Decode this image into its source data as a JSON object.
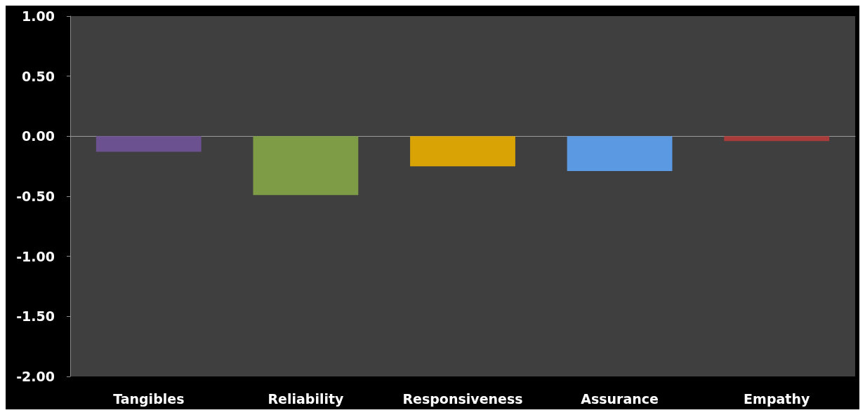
{
  "chart_data": {
    "type": "bar",
    "categories": [
      "Tangibles",
      "Reliability",
      "Responsiveness",
      "Assurance",
      "Empathy"
    ],
    "values": [
      -0.13,
      -0.49,
      -0.25,
      -0.29,
      -0.04
    ],
    "colors": [
      "#6b5190",
      "#7e9b45",
      "#d9a306",
      "#5b9ae3",
      "#a83c3a"
    ],
    "ylim": [
      -2,
      1
    ],
    "yticks": [
      {
        "value": -2,
        "label": "-2.00"
      },
      {
        "value": -1.5,
        "label": "-1.50"
      },
      {
        "value": -1,
        "label": "-1.00"
      },
      {
        "value": -0.5,
        "label": "-0.50"
      },
      {
        "value": 0,
        "label": "0.00"
      },
      {
        "value": 0.5,
        "label": "0.50"
      },
      {
        "value": 1,
        "label": "1.00"
      }
    ]
  }
}
